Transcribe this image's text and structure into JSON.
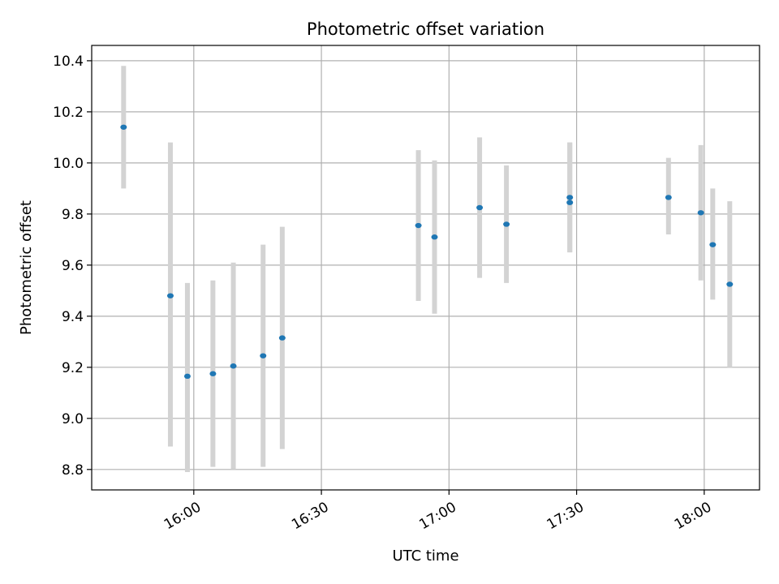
{
  "chart_data": {
    "type": "scatter",
    "title": "Photometric offset variation",
    "xlabel": "UTC time",
    "ylabel": "Photometric offset",
    "x_axis": {
      "kind": "time",
      "range": [
        "15:36",
        "18:13"
      ],
      "ticks": [
        "16:00",
        "16:30",
        "17:00",
        "17:30",
        "18:00"
      ]
    },
    "y_axis": {
      "range": [
        8.72,
        10.46
      ],
      "ticks": [
        8.8,
        9.0,
        9.2,
        9.4,
        9.6,
        9.8,
        10.0,
        10.2,
        10.4
      ],
      "tick_labels": [
        "8.8",
        "9.0",
        "9.2",
        "9.4",
        "9.6",
        "9.8",
        "10.0",
        "10.2",
        "10.4"
      ]
    },
    "grid": true,
    "colors": {
      "point": "#1f77b4",
      "errorbar": "#d3d3d3"
    },
    "points": [
      {
        "x": "15:43.5",
        "y": 10.14,
        "ylow": 9.9,
        "yhigh": 10.38
      },
      {
        "x": "15:54.5",
        "y": 9.48,
        "ylow": 8.89,
        "yhigh": 10.08
      },
      {
        "x": "15:58.5",
        "y": 9.165,
        "ylow": 8.79,
        "yhigh": 9.53
      },
      {
        "x": "16:04.5",
        "y": 9.175,
        "ylow": 8.81,
        "yhigh": 9.54
      },
      {
        "x": "16:09.3",
        "y": 9.205,
        "ylow": 8.8,
        "yhigh": 9.61
      },
      {
        "x": "16:16.3",
        "y": 9.245,
        "ylow": 8.81,
        "yhigh": 9.68
      },
      {
        "x": "16:20.8",
        "y": 9.315,
        "ylow": 8.88,
        "yhigh": 9.75
      },
      {
        "x": "16:52.8",
        "y": 9.755,
        "ylow": 9.46,
        "yhigh": 10.05
      },
      {
        "x": "16:56.6",
        "y": 9.71,
        "ylow": 9.41,
        "yhigh": 10.01
      },
      {
        "x": "17:07.2",
        "y": 9.825,
        "ylow": 9.55,
        "yhigh": 10.1
      },
      {
        "x": "17:13.5",
        "y": 9.76,
        "ylow": 9.53,
        "yhigh": 9.99
      },
      {
        "x": "17:28.4",
        "y": 9.845,
        "ylow": 9.65,
        "yhigh": 10.08
      },
      {
        "x": "17:28.4",
        "y": 9.865,
        "ylow": 9.65,
        "yhigh": 10.08
      },
      {
        "x": "17:51.6",
        "y": 9.865,
        "ylow": 9.72,
        "yhigh": 10.02
      },
      {
        "x": "17:59.2",
        "y": 9.805,
        "ylow": 9.54,
        "yhigh": 10.07
      },
      {
        "x": "18:02.0",
        "y": 9.68,
        "ylow": 9.465,
        "yhigh": 9.9
      },
      {
        "x": "18:06.0",
        "y": 9.525,
        "ylow": 9.2,
        "yhigh": 9.85
      }
    ]
  }
}
